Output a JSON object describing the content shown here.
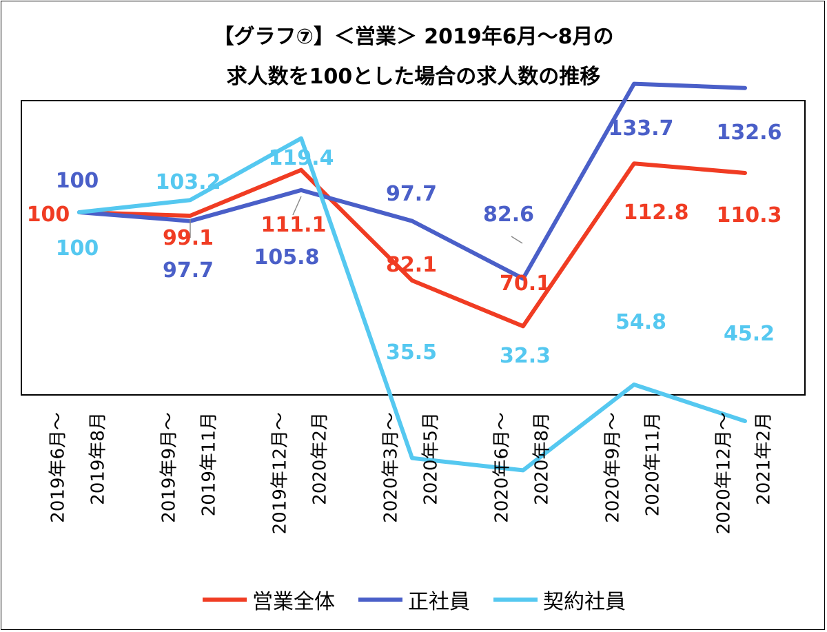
{
  "title_line1": "【グラフ⑦】＜営業＞ 2019年6月～8月の",
  "title_line2": "求人数を100とした場合の求人数の推移",
  "chart_data": {
    "type": "line",
    "categories": [
      [
        "2019年6月～",
        "2019年8月"
      ],
      [
        "2019年9月～",
        "2019年11月"
      ],
      [
        "2019年12月～",
        "2020年2月"
      ],
      [
        "2020年3月～",
        "2020年5月"
      ],
      [
        "2020年6月～",
        "2020年8月"
      ],
      [
        "2020年9月～",
        "2020年11月"
      ],
      [
        "2020年12月～",
        "2021年2月"
      ]
    ],
    "series": [
      {
        "name": "営業全体",
        "color": "#f03c23",
        "values": [
          100,
          99.1,
          111.1,
          82.1,
          70.1,
          112.8,
          110.3
        ]
      },
      {
        "name": "正社員",
        "color": "#4a5fc8",
        "values": [
          100,
          97.7,
          105.8,
          97.7,
          82.6,
          133.7,
          132.6
        ]
      },
      {
        "name": "契約社員",
        "color": "#55c8f0",
        "values": [
          100,
          103.2,
          119.4,
          35.5,
          32.3,
          54.8,
          45.2
        ]
      }
    ],
    "labels": [
      [
        "100",
        "99.1",
        "111.1",
        "82.1",
        "70.1",
        "112.8",
        "110.3"
      ],
      [
        "100",
        "97.7",
        "105.8",
        "97.7",
        "82.6",
        "133.7",
        "132.6"
      ],
      [
        "100",
        "103.2",
        "119.4",
        "35.5",
        "32.3",
        "54.8",
        "45.2"
      ]
    ],
    "ylim": [
      0,
      160
    ],
    "grid": false,
    "legend_position": "bottom"
  }
}
